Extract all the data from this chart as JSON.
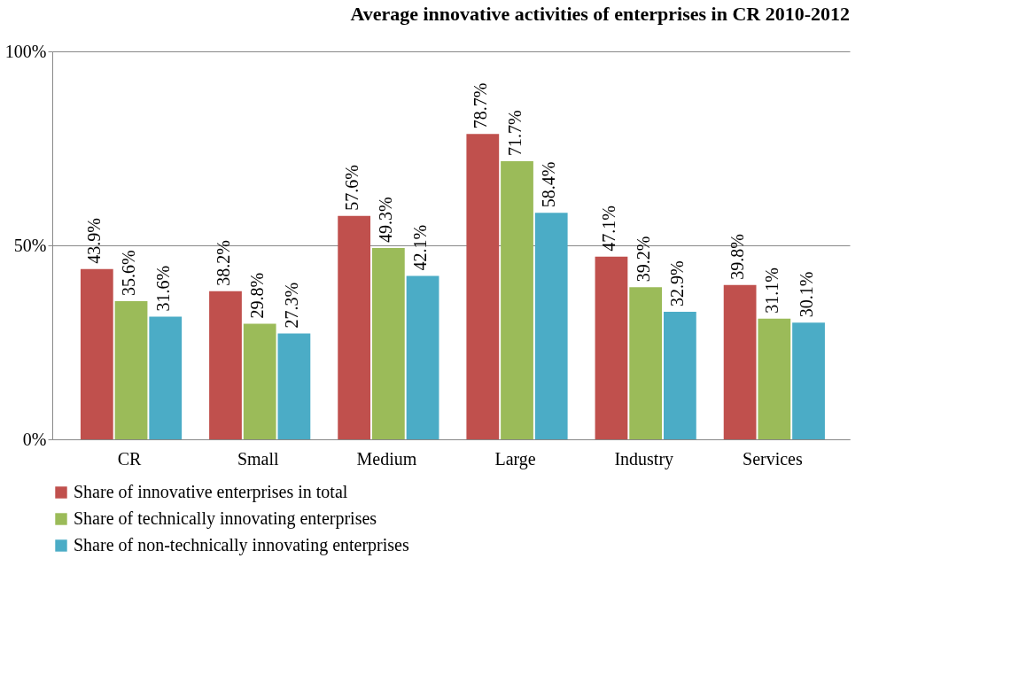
{
  "chart_data": {
    "type": "bar",
    "title": "Average innovative activities of enterprises in CR 2010-2012",
    "categories": [
      "CR",
      "Small",
      "Medium",
      "Large",
      "Industry",
      "Services"
    ],
    "series": [
      {
        "name": "Share of innovative enterprises in total",
        "color": "#c0504d",
        "values": [
          43.9,
          38.2,
          57.6,
          78.7,
          47.1,
          39.8
        ],
        "value_labels": [
          "43.9%",
          "38.2%",
          "57.6%",
          "78.7%",
          "47.1%",
          "39.8%"
        ]
      },
      {
        "name": "Share of technically innovating enterprises",
        "color": "#9bbb59",
        "values": [
          35.6,
          29.8,
          49.3,
          71.7,
          39.2,
          31.1
        ],
        "value_labels": [
          "35.6%",
          "29.8%",
          "49.3%",
          "71.7%",
          "39.2%",
          "31.1%"
        ]
      },
      {
        "name": "Share of non-technically innovating enterprises",
        "color": "#4bacc6",
        "values": [
          31.6,
          27.3,
          42.1,
          58.4,
          32.9,
          30.1
        ],
        "value_labels": [
          "31.6%",
          "27.3%",
          "42.1%",
          "58.4%",
          "32.9%",
          "30.1%"
        ]
      }
    ],
    "ylim": [
      0,
      100
    ],
    "yticks": [
      {
        "value": 0,
        "label": "0%"
      },
      {
        "value": 50,
        "label": "50%"
      },
      {
        "value": 100,
        "label": "100%"
      }
    ],
    "grid": "y",
    "legend": "bottom"
  }
}
